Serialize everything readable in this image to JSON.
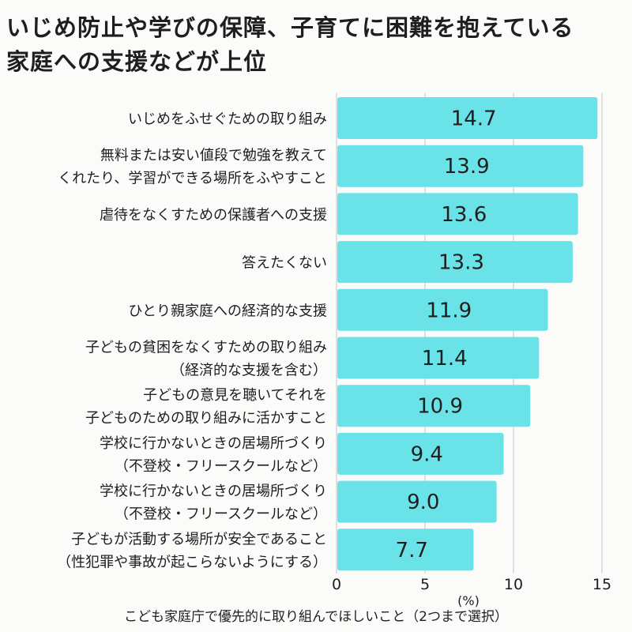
{
  "title": {
    "line1": "いじめ防止や学びの保障、子育てに困難を抱えている",
    "line2": "家庭への支援などが上位"
  },
  "footer": "こども家庭庁で優先的に取り組んでほしいこと（2つまで選択）",
  "colors": {
    "bar": "#6ae3e8",
    "background": "#fbfbf9",
    "grid": "#cfcfcf",
    "text": "#1e1e1e"
  },
  "chart_data": {
    "type": "bar",
    "orientation": "horizontal",
    "unit_label": "(%)",
    "xlim": [
      0,
      15
    ],
    "ticks": [
      0,
      5,
      10,
      15
    ],
    "grid": true,
    "categories": [
      [
        "いじめをふせぐための取り組み"
      ],
      [
        "無料または安い値段で勉強を教えて",
        "くれたり、学習ができる場所をふやすこと"
      ],
      [
        "虐待をなくすための保護者への支援"
      ],
      [
        "答えたくない"
      ],
      [
        "ひとり親家庭への経済的な支援"
      ],
      [
        "子どもの貧困をなくすための取り組み",
        "（経済的な支援を含む）"
      ],
      [
        "子どもの意見を聴いてそれを",
        "子どものための取り組みに活かすこと"
      ],
      [
        "学校に行かないときの居場所づくり",
        "（不登校・フリースクールなど）"
      ],
      [
        "学校に行かないときの居場所づくり",
        "（不登校・フリースクールなど）"
      ],
      [
        "子どもが活動する場所が安全であること",
        "（性犯罪や事故が起こらないようにする）"
      ]
    ],
    "values": [
      14.7,
      13.9,
      13.6,
      13.3,
      11.9,
      11.4,
      10.9,
      9.4,
      9.0,
      7.7
    ],
    "value_labels": [
      "14.7",
      "13.9",
      "13.6",
      "13.3",
      "11.9",
      "11.4",
      "10.9",
      "9.4",
      "9.0",
      "7.7"
    ]
  }
}
